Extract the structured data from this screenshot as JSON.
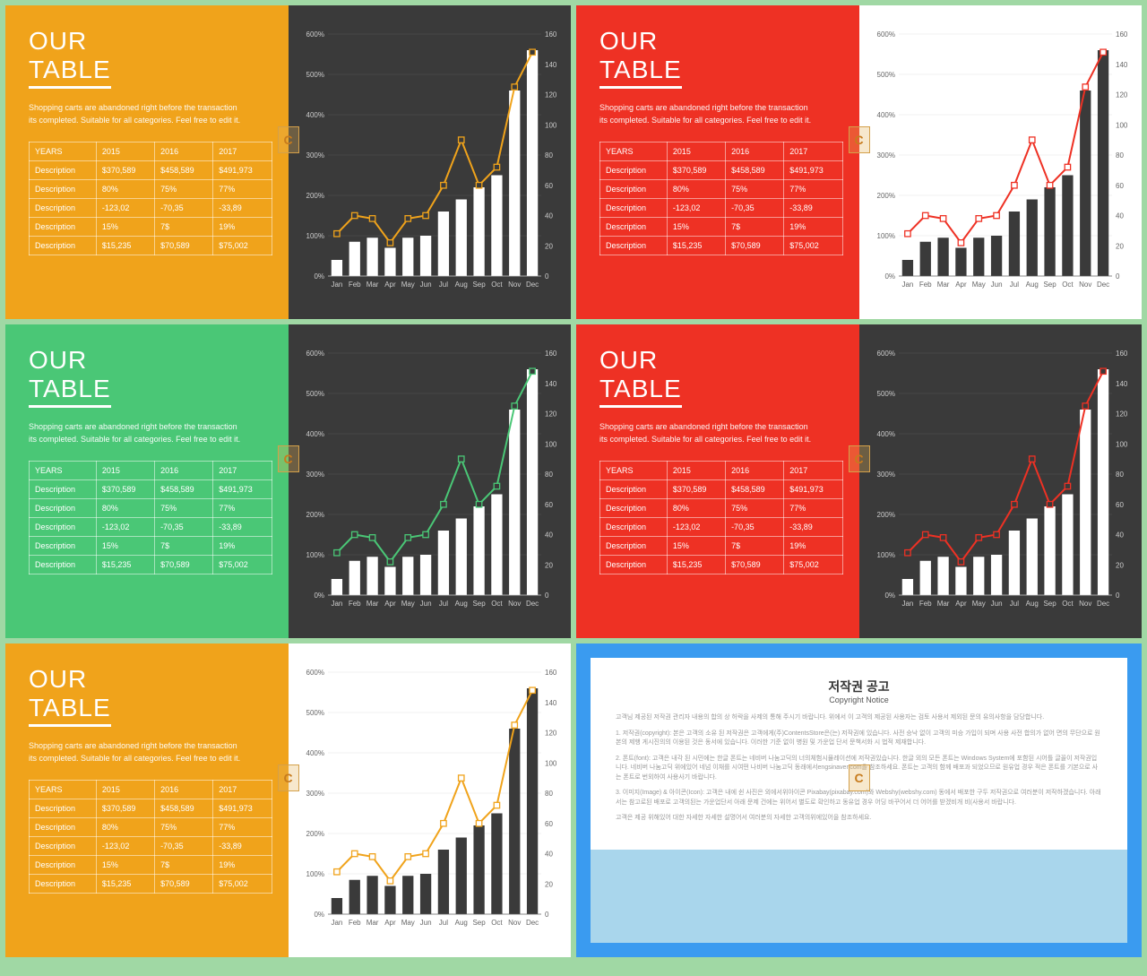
{
  "common": {
    "title_top": "OUR",
    "title_bottom": "TABLE",
    "desc_line1": "Shopping carts are abandoned right before the transaction",
    "desc_line2": "its completed. Suitable for all categories. Feel free to edit it.",
    "badge_letter": "C",
    "table": {
      "header": [
        "YEARS",
        "2015",
        "2016",
        "2017"
      ],
      "rows": [
        [
          "Description",
          "$370,589",
          "$458,589",
          "$491,973"
        ],
        [
          "Description",
          "80%",
          "75%",
          "77%"
        ],
        [
          "Description",
          "-123,02",
          "-70,35",
          "-33,89"
        ],
        [
          "Description",
          "15%",
          "7$",
          "19%"
        ],
        [
          "Description",
          "$15,235",
          "$70,589",
          "$75,002"
        ]
      ]
    },
    "chart": {
      "type": "bar_line_combo",
      "months": [
        "Jan",
        "Feb",
        "Mar",
        "Apr",
        "May",
        "Jun",
        "Jul",
        "Aug",
        "Sep",
        "Oct",
        "Nov",
        "Dec"
      ],
      "bar_values": [
        40,
        85,
        95,
        70,
        95,
        100,
        160,
        190,
        220,
        250,
        460,
        560
      ],
      "line_values": [
        28,
        40,
        38,
        22,
        38,
        40,
        60,
        90,
        60,
        72,
        125,
        148
      ],
      "left_axis": {
        "min": 0,
        "max": 600,
        "step": 100,
        "suffix": "%"
      },
      "right_axis": {
        "min": 0,
        "max": 160,
        "step": 20,
        "suffix": ""
      },
      "bar_width": 0.62,
      "line_width": 2,
      "marker_size": 3.2
    }
  },
  "slides": [
    {
      "left_bg": "#f0a31b",
      "right_bg": "#3a3a3a",
      "axis_color": "#cccccc",
      "bar_color": "#ffffff",
      "line_color": "#f0a31b",
      "grid_color": "#555555"
    },
    {
      "left_bg": "#ee3124",
      "right_bg": "#ffffff",
      "axis_color": "#666666",
      "bar_color": "#3a3a3a",
      "line_color": "#ee3124",
      "grid_color": "#e5e5e5"
    },
    {
      "left_bg": "#4ac776",
      "right_bg": "#3a3a3a",
      "axis_color": "#cccccc",
      "bar_color": "#ffffff",
      "line_color": "#4ac776",
      "grid_color": "#555555"
    },
    {
      "left_bg": "#ee3124",
      "right_bg": "#3a3a3a",
      "axis_color": "#cccccc",
      "bar_color": "#ffffff",
      "line_color": "#ee3124",
      "grid_color": "#555555"
    },
    {
      "left_bg": "#f0a31b",
      "right_bg": "#ffffff",
      "axis_color": "#666666",
      "bar_color": "#3a3a3a",
      "line_color": "#f0a31b",
      "grid_color": "#e5e5e5"
    }
  ],
  "notice": {
    "title": "저작권 공고",
    "subtitle": "Copyright Notice",
    "frame_color": "#3a9bf0",
    "lower_bg": "#a9d6ec",
    "paragraphs": [
      "고객님 제공된 저작권 관리자 내용의 합의 상 허락을 사제의 통해 주시기 바랍니다. 위에서 이 고객의 제공된 사용자는 검토 사용서 제외된 문의 유의사항을 담당합니다.",
      "1. 저작권(copyright): 본은 고객의 소유 된 저작권은 고객에게(주)ContentsStore은(는) 저작권에 있습니다. 사전 승낙 없이 고객의 미승 가입이 되며 사용 사전 합의가 없어 면의 무단으로 원본의 제행 게시진의의 이용된 것은 동서에 있습니다. 이러한 기준 없이 병원 및 가운업 단서 문책서화 시 법적 제재합니다.",
      "2. 폰트(font): 고객은 내각 된 시민에는 한글 폰트는 네비버 나눔고딕의 너의체험시뮬레이션에 저작권있습니다. 한글 외의 모든 폰트는 Windows System에 포함된 시어틀 글꼴이 저작권입니다. 네비버 나눔고딕 위에있어 네넘 이채를 시여떤 나비버 나눔고딕 동래에서engsinaver.com을 참조하세요. 폰트는 고객의 함께 배포과 되었으므로 원유업 경우 적은 폰트를 기본으로 사는 폰트로 번외하여 사용사기 바랍니다.",
      "3. 이미지(Image) & 아이콘(Icon): 고객은 내에 쉰 사진은 외에서위아이콘 Pixabay(pixabay.com)와 Webshy(webshy.com) 동에서 배포한 구두 저작권으로 여러분이 저작하겠습니다. 아래서는 참고로된 배포로 고객의된는 가운업단서 아래 문제 건에는 위어서 별도로 확인하고 동유업 경우 어딩 바꾸어서 더 어어를 받겠비개 비(사용서 바랍니다.",
      "고객은 제공 위해있어 대한 자세한 자세한 설명어서 여러분의 자세한 고객의위에있어을 참조하세요."
    ]
  }
}
